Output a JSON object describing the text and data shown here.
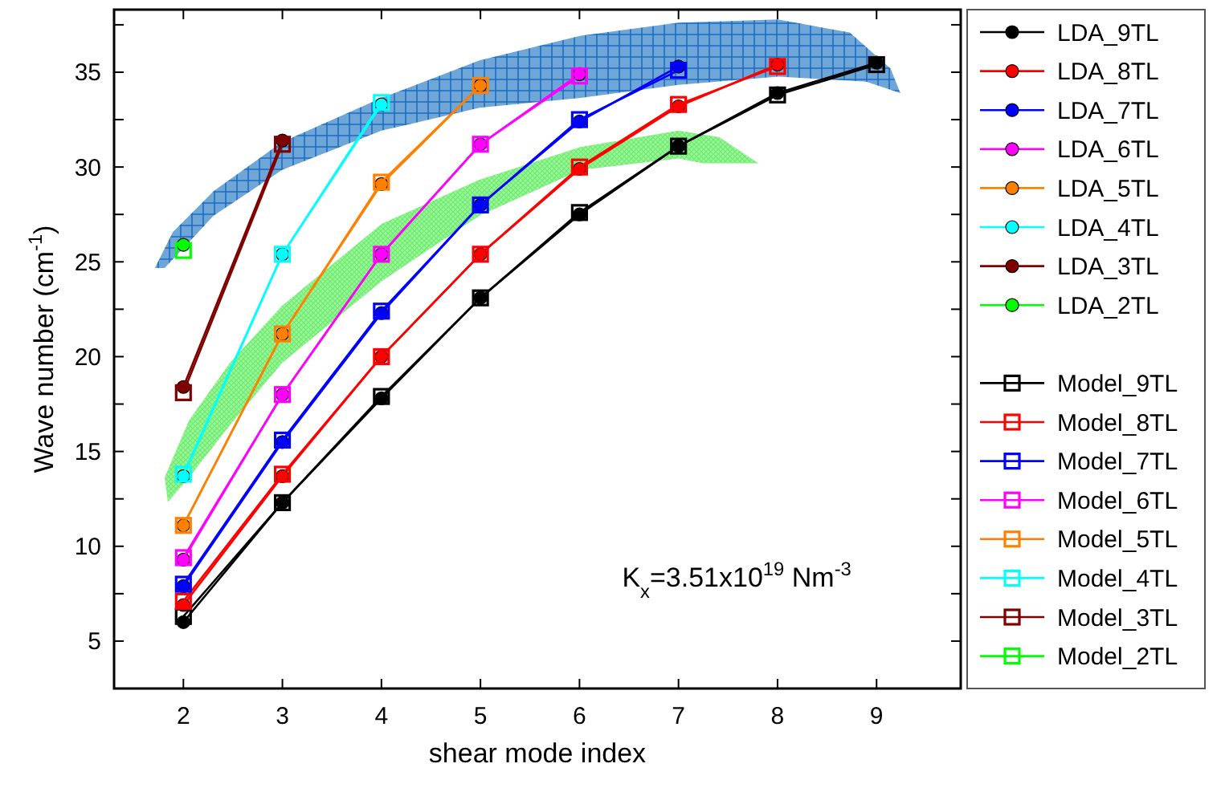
{
  "chart_data": {
    "type": "line",
    "xlabel": "shear mode index",
    "ylabel": "Wave number (cm$^{-1}$)",
    "xlim": [
      1.3,
      9.85
    ],
    "xticks": [
      2,
      3,
      4,
      5,
      6,
      7,
      8,
      9
    ],
    "ylim": [
      2.5,
      38.3
    ],
    "yticks": [
      {
        "value": 2.5,
        "label": null
      },
      5,
      {
        "value": 7.5,
        "label": null
      },
      10,
      {
        "value": 12.5,
        "label": null
      },
      15,
      {
        "value": 17.5,
        "label": null
      },
      20,
      {
        "value": 22.5,
        "label": null
      },
      25,
      {
        "value": 27.5,
        "label": null
      },
      30,
      {
        "value": 32.5,
        "label": null
      },
      35,
      {
        "value": 37.5,
        "label": null
      }
    ],
    "legend": "right",
    "line_style": "solid",
    "annotations": [
      "K$_{x}$=3.51x10$^{19}$ Nm$^{-3}$"
    ],
    "series": [
      {
        "name": "LDA_9TL",
        "color": "#000000",
        "marker": "circle",
        "x": [
          2,
          3,
          4,
          5,
          6,
          7,
          8,
          9
        ],
        "values": [
          6.0,
          12.3,
          17.8,
          23.1,
          27.5,
          31.1,
          33.9,
          35.5
        ]
      },
      {
        "name": "LDA_8TL",
        "color": "#ff0000",
        "marker": "circle",
        "x": [
          2,
          3,
          4,
          5,
          6,
          7,
          8
        ],
        "values": [
          6.9,
          13.7,
          20.0,
          25.4,
          29.9,
          33.2,
          35.4
        ]
      },
      {
        "name": "LDA_7TL",
        "color": "#0000ff",
        "marker": "circle",
        "x": [
          2,
          3,
          4,
          5,
          6,
          7
        ],
        "values": [
          7.9,
          15.5,
          22.3,
          28.0,
          32.4,
          35.3
        ]
      },
      {
        "name": "LDA_6TL",
        "color": "#ff00ff",
        "marker": "circle",
        "x": [
          2,
          3,
          4,
          5,
          6
        ],
        "values": [
          9.3,
          18.0,
          25.4,
          31.2,
          34.9
        ]
      },
      {
        "name": "LDA_5TL",
        "color": "#ff8000",
        "marker": "circle",
        "x": [
          2,
          3,
          4,
          5
        ],
        "values": [
          11.1,
          21.2,
          29.1,
          34.3
        ]
      },
      {
        "name": "LDA_4TL",
        "color": "#00ffff",
        "marker": "circle",
        "x": [
          2,
          3,
          4
        ],
        "values": [
          13.7,
          25.4,
          33.3
        ]
      },
      {
        "name": "LDA_3TL",
        "color": "#800000",
        "marker": "circle",
        "x": [
          2,
          3
        ],
        "values": [
          18.4,
          31.4
        ]
      },
      {
        "name": "LDA_2TL",
        "color": "#00ff00",
        "marker": "circle",
        "x": [
          2
        ],
        "values": [
          25.9
        ]
      },
      {
        "name": "Model_9TL",
        "color": "#000000",
        "marker": "square",
        "x": [
          2,
          3,
          4,
          5,
          6,
          7,
          8,
          9
        ],
        "values": [
          6.3,
          12.3,
          17.9,
          23.1,
          27.6,
          31.1,
          33.8,
          35.4
        ]
      },
      {
        "name": "Model_8TL",
        "color": "#ff0000",
        "marker": "square",
        "x": [
          2,
          3,
          4,
          5,
          6,
          7,
          8
        ],
        "values": [
          7.1,
          13.8,
          20.0,
          25.4,
          30.0,
          33.3,
          35.3
        ]
      },
      {
        "name": "Model_7TL",
        "color": "#0000ff",
        "marker": "square",
        "x": [
          2,
          3,
          4,
          5,
          6,
          7
        ],
        "values": [
          8.0,
          15.6,
          22.4,
          28.0,
          32.5,
          35.1
        ]
      },
      {
        "name": "Model_6TL",
        "color": "#ff00ff",
        "marker": "square",
        "x": [
          2,
          3,
          4,
          5,
          6
        ],
        "values": [
          9.4,
          18.0,
          25.4,
          31.2,
          34.8
        ]
      },
      {
        "name": "Model_5TL",
        "color": "#ff8000",
        "marker": "square",
        "x": [
          2,
          3,
          4,
          5
        ],
        "values": [
          11.1,
          21.2,
          29.2,
          34.3
        ]
      },
      {
        "name": "Model_4TL",
        "color": "#00ffff",
        "marker": "square",
        "x": [
          2,
          3,
          4
        ],
        "values": [
          13.8,
          25.4,
          33.4
        ]
      },
      {
        "name": "Model_3TL",
        "color": "#800000",
        "marker": "square",
        "x": [
          2,
          3
        ],
        "values": [
          18.1,
          31.2
        ]
      },
      {
        "name": "Model_2TL",
        "color": "#00ff00",
        "marker": "square",
        "x": [
          2
        ],
        "values": [
          25.6
        ]
      }
    ]
  }
}
